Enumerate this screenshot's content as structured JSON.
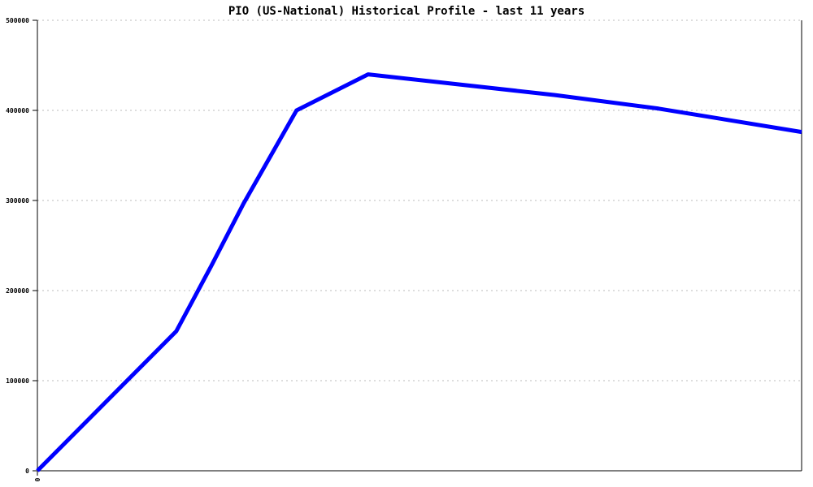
{
  "chart_data": {
    "type": "line",
    "title": "PIO (US-National) Historical Profile - last 11 years",
    "xlabel": "",
    "ylabel": "",
    "x_tick_labels": [
      "0"
    ],
    "y_tick_labels": [
      "0",
      "100000",
      "200000",
      "300000",
      "400000",
      "500000"
    ],
    "y_ticks": [
      0,
      100000,
      200000,
      300000,
      400000,
      500000
    ],
    "xlim": [
      0,
      11
    ],
    "ylim": [
      0,
      500000
    ],
    "grid": "horizontal dotted",
    "line_color": "#0000ff",
    "x": [
      0,
      2.0,
      2.5,
      2.97,
      3.73,
      4.76,
      7.45,
      8.94,
      11
    ],
    "y": [
      0,
      155000,
      227000,
      297000,
      400000,
      440000,
      417000,
      402000,
      376000
    ]
  }
}
